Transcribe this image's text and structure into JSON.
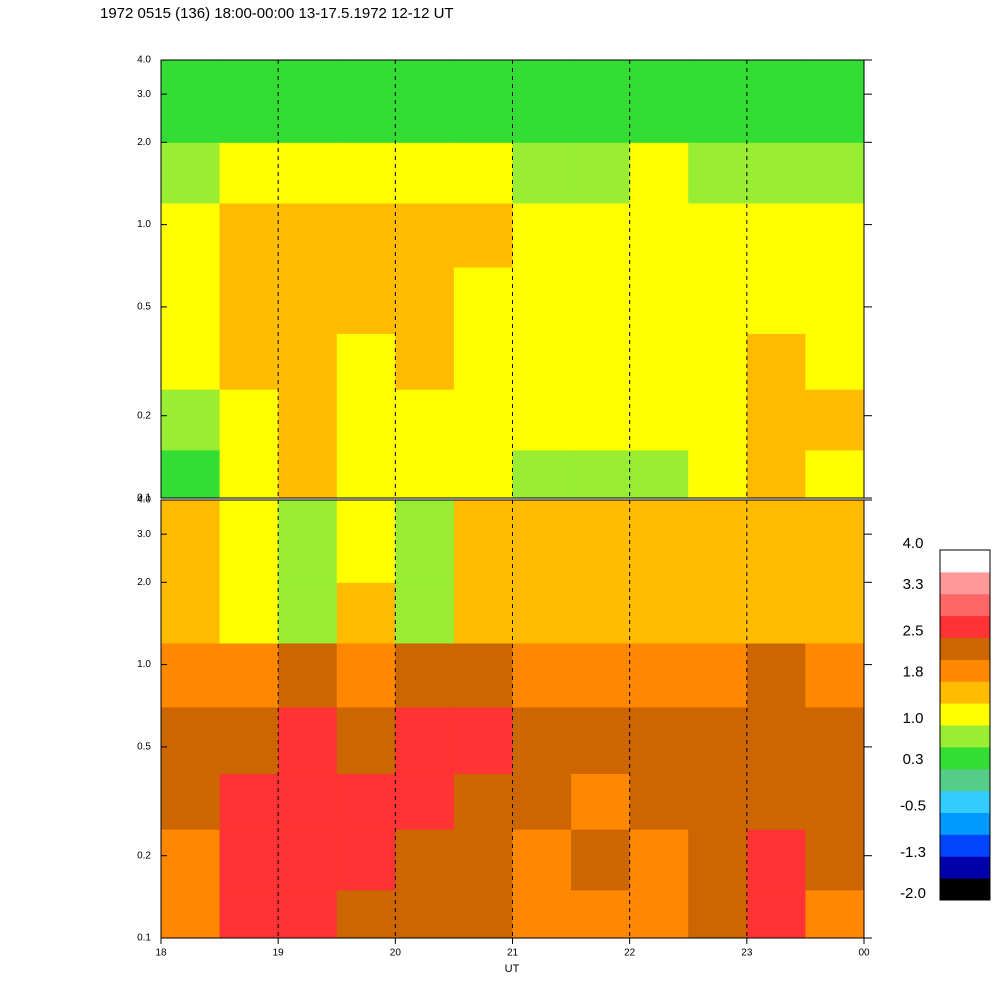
{
  "chart_data": {
    "type": "heatmap",
    "title": "1972 0515 (136) 18:00-00:00 13-17.5.1972  12-12 UT",
    "xlabel": "UT",
    "xlim": [
      18,
      24
    ],
    "xticks": [
      18,
      19,
      20,
      21,
      22,
      23,
      {
        "value": 24,
        "label": "00"
      }
    ],
    "ylim": [
      0.1,
      4
    ],
    "ylog": true,
    "yticks": [
      0.1,
      0.2,
      0.5,
      {
        "value": 1,
        "label": "1.0"
      },
      {
        "value": 2,
        "label": "2.0"
      },
      {
        "value": 3,
        "label": "3.0"
      },
      {
        "value": 4,
        "label": "4.0"
      }
    ],
    "x": [
      18,
      18.5,
      19,
      19.5,
      20,
      20.5,
      21,
      21.5,
      22,
      22.5,
      23,
      23.5,
      24
    ],
    "y": [
      0.1,
      0.15,
      0.25,
      0.4,
      0.7,
      1.2,
      2.0,
      4.0
    ],
    "panels": [
      {
        "z": [
          [
            0.6,
            1.2,
            1.4,
            1.2,
            1.1,
            1.0,
            0.9,
            0.8,
            0.9,
            1.0,
            1.6,
            1.3
          ],
          [
            0.9,
            1.3,
            1.5,
            1.3,
            1.2,
            1.1,
            1.0,
            1.0,
            1.1,
            1.1,
            1.5,
            1.4
          ],
          [
            1.1,
            1.4,
            1.6,
            1.3,
            1.4,
            1.2,
            1.0,
            1.1,
            1.0,
            1.1,
            1.4,
            1.3
          ],
          [
            1.2,
            1.5,
            1.6,
            1.4,
            1.5,
            1.3,
            1.1,
            1.1,
            1.1,
            1.2,
            1.2,
            1.1
          ],
          [
            1.3,
            1.5,
            1.5,
            1.4,
            1.6,
            1.4,
            1.2,
            1.1,
            1.3,
            1.2,
            1.1,
            1.0
          ],
          [
            0.9,
            1.0,
            1.1,
            1.0,
            1.0,
            1.0,
            0.9,
            0.9,
            1.0,
            0.9,
            0.9,
            0.8
          ],
          [
            0.5,
            0.6,
            0.6,
            0.6,
            0.5,
            0.5,
            0.5,
            0.6,
            0.5,
            0.5,
            0.5,
            0.4
          ]
        ]
      },
      {
        "z": [
          [
            1.9,
            2.5,
            2.6,
            2.4,
            2.3,
            2.2,
            2.1,
            2.1,
            2.0,
            2.2,
            2.5,
            2.1
          ],
          [
            2.0,
            2.6,
            2.6,
            2.5,
            2.4,
            2.3,
            2.1,
            2.2,
            2.1,
            2.3,
            2.5,
            2.2
          ],
          [
            2.2,
            2.5,
            2.6,
            2.6,
            2.5,
            2.4,
            2.2,
            2.1,
            2.2,
            2.2,
            2.4,
            2.2
          ],
          [
            2.3,
            2.4,
            2.5,
            2.4,
            2.5,
            2.6,
            2.2,
            2.2,
            2.2,
            2.2,
            2.3,
            2.2
          ],
          [
            2.0,
            2.1,
            2.3,
            2.0,
            2.3,
            2.4,
            2.1,
            2.0,
            2.1,
            2.1,
            2.2,
            2.1
          ],
          [
            1.6,
            1.2,
            0.8,
            1.5,
            0.8,
            1.6,
            1.7,
            1.6,
            1.6,
            1.7,
            1.7,
            1.6
          ],
          [
            1.4,
            1.1,
            0.9,
            1.3,
            0.9,
            1.4,
            1.5,
            1.5,
            1.5,
            1.5,
            1.5,
            1.5
          ]
        ]
      }
    ],
    "zlim": [
      -2,
      4
    ],
    "colors": [
      "#000000",
      "#0000aa",
      "#0044ff",
      "#0099ff",
      "#33ccff",
      "#55cc88",
      "#33dd33",
      "#99ee33",
      "#ffff00",
      "#ffbb00",
      "#ff8800",
      "#cc6600",
      "#ff3333",
      "#ff6666",
      "#ff9999",
      "#ffffff"
    ],
    "zticks": [
      {
        "value": 4,
        "label": "4.0"
      },
      3.3,
      2.5,
      1.8,
      {
        "value": 1,
        "label": "1.0"
      },
      0.3,
      -0.5,
      -1.3,
      {
        "value": -2,
        "label": "-2.0"
      }
    ]
  }
}
